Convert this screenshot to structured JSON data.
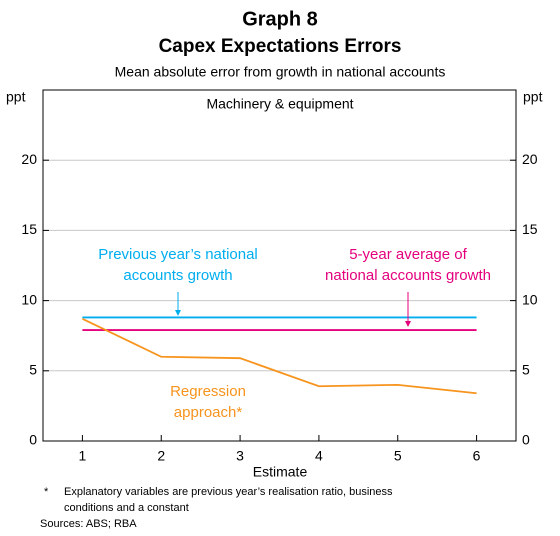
{
  "chart_data": {
    "type": "line",
    "title": "Graph 8",
    "subtitle": "Capex Expectations Errors",
    "description": "Mean absolute error from growth in national accounts",
    "panel_title": "Machinery & equipment",
    "y_unit": "ppt",
    "y2_unit": "ppt",
    "xlabel": "Estimate",
    "x": [
      1,
      2,
      3,
      4,
      5,
      6
    ],
    "xlim": [
      0.5,
      6.5
    ],
    "xticks": [
      1,
      2,
      3,
      4,
      5,
      6
    ],
    "ylim": [
      0,
      25
    ],
    "yticks": [
      0,
      5,
      10,
      15,
      20
    ],
    "y2lim": [
      0,
      25
    ],
    "y2ticks": [
      0,
      5,
      10,
      15,
      20
    ],
    "grid": true,
    "series": [
      {
        "name": [
          "Previous year’s national",
          "accounts growth"
        ],
        "color": "#00aeef",
        "values": [
          8.8,
          8.8,
          8.8,
          8.8,
          8.8,
          8.8
        ]
      },
      {
        "name": [
          "5-year average of",
          "national accounts growth"
        ],
        "color": "#e5007d",
        "values": [
          7.9,
          7.9,
          7.9,
          7.9,
          7.9,
          7.9
        ]
      },
      {
        "name": [
          "Regression",
          "approach*"
        ],
        "color": "#f7941d",
        "values": [
          8.7,
          6.0,
          5.9,
          3.9,
          4.0,
          3.4
        ]
      }
    ],
    "footnote": {
      "marker": "*",
      "lines": [
        "Explanatory variables are previous year’s realisation ratio, business",
        "conditions and a constant"
      ]
    },
    "sources": "Sources: ABS; RBA"
  }
}
